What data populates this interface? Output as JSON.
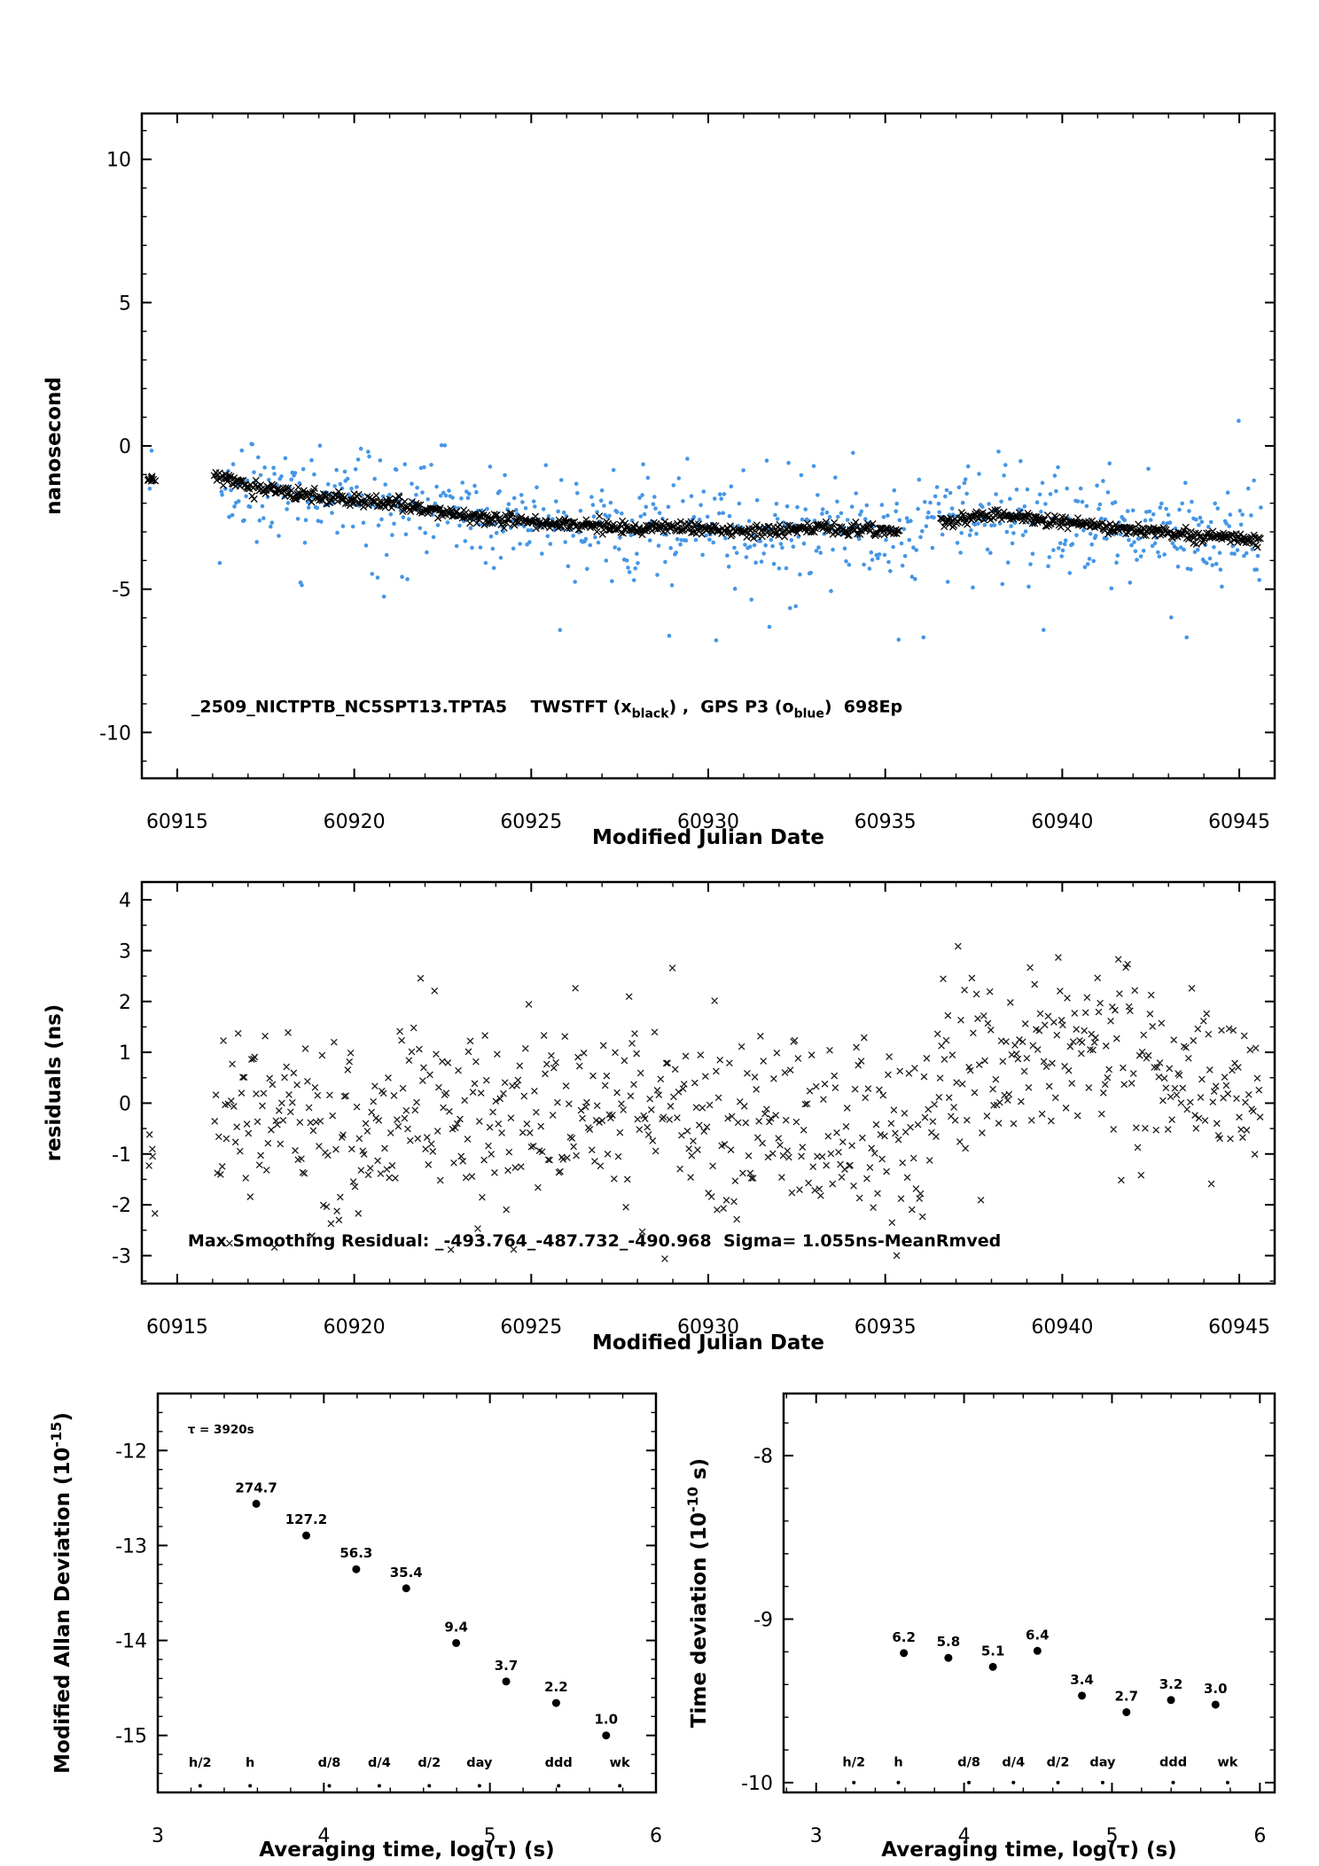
{
  "page": {
    "bg": "#ffffff"
  },
  "colors": {
    "axis": "#000000",
    "twstft": "#000000",
    "gps": "#4596e6",
    "accent_red": "#ff0000"
  },
  "chart_data": [
    {
      "id": "top",
      "type": "scatter",
      "title": "",
      "xlabel": "Modified Julian Date",
      "ylabel": "nanosecond",
      "xlim": [
        60914,
        60946
      ],
      "ylim": [
        -11.6,
        11.6
      ],
      "xticks": {
        "major": [
          60915,
          60920,
          60925,
          60930,
          60935,
          60940,
          60945
        ],
        "labels": [
          "60915",
          "60920",
          "60925",
          "60930",
          "60935",
          "60940",
          "60945"
        ],
        "minor_step": 1
      },
      "yticks": {
        "major": [
          -10,
          -5,
          0,
          5,
          10
        ],
        "labels": [
          "-10",
          "-5",
          "0",
          "5",
          "10"
        ],
        "minor_step": 1
      },
      "annotation": {
        "x": 60915.4,
        "y": -9.3,
        "parts": [
          {
            "t": "_2509_NICTPTB_NC5SPT13.TPTA5    TWSTFT (x"
          },
          {
            "t": "black",
            "sub": true
          },
          {
            "t": ") ,  GPS P3 (o"
          },
          {
            "t": "blue",
            "sub": true
          },
          {
            "t": ")  698Ep"
          }
        ]
      },
      "trend_knots": [
        [
          60914.2,
          -1.12
        ],
        [
          60916.05,
          -1.02
        ],
        [
          60917,
          -1.4
        ],
        [
          60918,
          -1.62
        ],
        [
          60919,
          -1.8
        ],
        [
          60920,
          -1.92
        ],
        [
          60921,
          -2.02
        ],
        [
          60922,
          -2.18
        ],
        [
          60923,
          -2.42
        ],
        [
          60924,
          -2.58
        ],
        [
          60925,
          -2.64
        ],
        [
          60926,
          -2.72
        ],
        [
          60927,
          -2.84
        ],
        [
          60928,
          -2.9
        ],
        [
          60929,
          -2.84
        ],
        [
          60930,
          -2.94
        ],
        [
          60931,
          -3.0
        ],
        [
          60932,
          -2.9
        ],
        [
          60933,
          -2.86
        ],
        [
          60934,
          -2.9
        ],
        [
          60935,
          -2.96
        ],
        [
          60936.55,
          -2.72
        ],
        [
          60937.5,
          -2.46
        ],
        [
          60938.5,
          -2.4
        ],
        [
          60939.5,
          -2.56
        ],
        [
          60940.5,
          -2.7
        ],
        [
          60941.5,
          -2.86
        ],
        [
          60942.5,
          -3.0
        ],
        [
          60943.5,
          -3.12
        ],
        [
          60944.5,
          -3.2
        ],
        [
          60945.6,
          -3.32
        ]
      ],
      "series": [
        {
          "name": "GPS P3 (o blue)",
          "marker": "dot",
          "color": "#4596e6",
          "r": 2.3,
          "n": 760,
          "x_start": 60916.2,
          "x_end": 60945.6,
          "sigma": 0.85,
          "seed": 23,
          "outlier_frac": 0.05,
          "outlier_extra": 1.6,
          "clip": [
            -6.8,
            1.9
          ],
          "trend": "shared",
          "head_cluster": {
            "x0": 60914.2,
            "x1": 60914.45,
            "n": 2,
            "y": -0.4,
            "sigma": 0.7
          }
        },
        {
          "name": "TWSTFT (x black)",
          "marker": "x",
          "color": "#000000",
          "half": 3.6,
          "n": 950,
          "x_start": 60916.05,
          "x_end": 60945.6,
          "sigma": 0.11,
          "seed": 11,
          "gap": [
            60935.4,
            60936.55
          ],
          "clip": [
            -4.2,
            0.0
          ],
          "trend": "shared",
          "head_cluster": {
            "x0": 60914.15,
            "x1": 60914.45,
            "n": 10,
            "y": -1.12,
            "sigma": 0.09
          }
        }
      ]
    },
    {
      "id": "residuals",
      "type": "scatter",
      "title": "",
      "xlabel": "Modified Julian Date",
      "ylabel": "residuals (ns)",
      "xlim": [
        60914,
        60946
      ],
      "ylim": [
        -3.55,
        4.35
      ],
      "xticks": {
        "major": [
          60915,
          60920,
          60925,
          60930,
          60935,
          60940,
          60945
        ],
        "labels": [
          "60915",
          "60920",
          "60925",
          "60930",
          "60935",
          "60940",
          "60945"
        ],
        "minor_step": 1
      },
      "yticks": {
        "major": [
          -3,
          -2,
          -1,
          0,
          1,
          2,
          3,
          4
        ],
        "labels": [
          "-3",
          "-2",
          "-1",
          "0",
          "1",
          "2",
          "3",
          "4"
        ],
        "minor_step": 0.5
      },
      "annotation": {
        "x": 60915.3,
        "y": -2.82,
        "parts": [
          {
            "t": "Max Smoothing Residual: _-493.764_-487.732_-490.968  Sigma= 1.055ns-MeanRmved"
          }
        ]
      },
      "trend_knots": [
        [
          60914.2,
          -1.0
        ],
        [
          60916,
          -0.4
        ],
        [
          60918,
          -0.25
        ],
        [
          60920,
          -0.3
        ],
        [
          60922,
          -0.2
        ],
        [
          60924,
          -0.35
        ],
        [
          60926,
          -0.25
        ],
        [
          60928,
          -0.2
        ],
        [
          60930,
          -0.3
        ],
        [
          60932,
          -0.35
        ],
        [
          60934,
          -0.5
        ],
        [
          60935.5,
          -0.55
        ],
        [
          60936.3,
          0.35
        ],
        [
          60937.5,
          0.75
        ],
        [
          60939,
          0.9
        ],
        [
          60941,
          0.75
        ],
        [
          60943,
          0.55
        ],
        [
          60945.6,
          0.35
        ]
      ],
      "series": [
        {
          "name": "smoothing residuals",
          "marker": "x",
          "color": "#1a1a1a",
          "half": 3.4,
          "n": 700,
          "x_start": 60916.05,
          "x_end": 60945.6,
          "sigma": 0.95,
          "seed": 37,
          "clip": [
            -3.1,
            3.45
          ],
          "trend": "self",
          "head_cluster": {
            "x0": 60914.15,
            "x1": 60914.45,
            "n": 5,
            "y": -1.1,
            "sigma": 0.7
          }
        }
      ]
    },
    {
      "id": "mdev",
      "type": "scatter",
      "title": "",
      "xlabel": "Averaging time, log(τ) (s)",
      "ylabel": {
        "main": "Modified Allan Deviation (10",
        "sup": "-15",
        "end": ")"
      },
      "xlim": [
        3,
        6
      ],
      "ylim": [
        -15.6,
        -11.4
      ],
      "xticks": {
        "major": [
          3,
          4,
          5,
          6
        ],
        "labels": [
          "3",
          "4",
          "5",
          "6"
        ],
        "minor_step": 0.2
      },
      "yticks": {
        "major": [
          -12,
          -13,
          -14,
          -15
        ],
        "labels": [
          "-12",
          "-13",
          "-14",
          "-15"
        ],
        "minor_step": 0.2
      },
      "tau_note": {
        "x": 3.18,
        "y": -11.82,
        "text": "τ = 3920s"
      },
      "points": {
        "x": [
          3.593,
          3.894,
          4.195,
          4.496,
          4.797,
          5.098,
          5.399,
          5.7
        ],
        "y": [
          -12.561,
          -12.895,
          -13.25,
          -13.451,
          -14.027,
          -14.432,
          -14.658,
          -15.0
        ],
        "value_labels": [
          "274.7",
          "127.2",
          "56.3",
          "35.4",
          "9.4",
          "3.7",
          "2.2",
          "1.0"
        ]
      },
      "tau_marks": {
        "labels": [
          "h/2",
          "h",
          "d/8",
          "d/4",
          "d/2",
          "day",
          "ddd",
          "wk"
        ],
        "x": [
          3.255,
          3.556,
          4.033,
          4.334,
          4.635,
          4.937,
          5.414,
          5.782
        ],
        "label_y": -15.33,
        "dot_y": -15.53
      }
    },
    {
      "id": "tdev",
      "type": "scatter",
      "title": "",
      "xlabel": "Averaging time, log(τ) (s)",
      "ylabel": {
        "main": "Time deviation (10",
        "sup": "-10",
        "end": " s)"
      },
      "xlim": [
        2.78,
        6.1
      ],
      "ylim": [
        -10.06,
        -7.62
      ],
      "xticks": {
        "major": [
          3,
          4,
          5,
          6
        ],
        "labels": [
          "3",
          "4",
          "5",
          "6"
        ],
        "minor_step": 0.2
      },
      "yticks": {
        "major": [
          -8,
          -9,
          -10
        ],
        "labels": [
          "-8",
          "-9",
          "-10"
        ],
        "minor_step": 0.2
      },
      "points": {
        "x": [
          3.593,
          3.894,
          4.195,
          4.496,
          4.797,
          5.098,
          5.399,
          5.7
        ],
        "y": [
          -9.208,
          -9.237,
          -9.292,
          -9.194,
          -9.468,
          -9.569,
          -9.495,
          -9.523
        ],
        "value_labels": [
          "6.2",
          "5.8",
          "5.1",
          "6.4",
          "3.4",
          "2.7",
          "3.2",
          "3.0"
        ]
      },
      "tau_marks": {
        "labels": [
          "h/2",
          "h",
          "d/8",
          "d/4",
          "d/2",
          "day",
          "ddd",
          "wk"
        ],
        "x": [
          3.255,
          3.556,
          4.033,
          4.334,
          4.635,
          4.937,
          5.414,
          5.782
        ],
        "label_y": -9.9,
        "dot_y": -10.0
      }
    }
  ]
}
